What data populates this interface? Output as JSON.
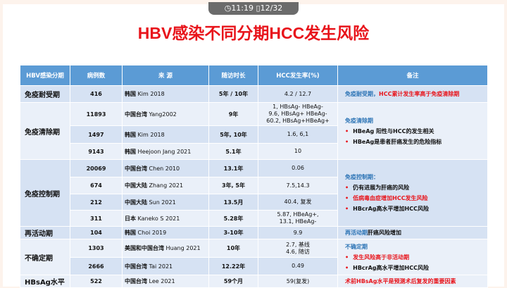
{
  "status": {
    "time": "11:19",
    "page": "12/32"
  },
  "title": "HBV感染不同分期HCC发生风险",
  "headers": [
    "HBV感染分期",
    "病例数",
    "来 源",
    "随访时长",
    "HCC发生率(%)",
    "备注"
  ],
  "rows": [
    {
      "stage": "免疫耐受期",
      "n": "416",
      "src_c": "韩国",
      "src_r": "Kim 2018",
      "fu": "5年 / 10年",
      "hcc": "4.2 / 12.7"
    },
    {
      "stage": "免疫清除期",
      "n": "11893",
      "src_c": "中国台湾",
      "src_r": "Yang2002",
      "fu": "9年",
      "hcc": "1, HBsAg- HBeAg-\n9.6, HBsAg+ HBeAg-\n60.2, HBsAg+HBeAg+"
    },
    {
      "n": "1497",
      "src_c": "韩国",
      "src_r": "Kim 2018",
      "fu": "5年, 10年",
      "hcc": "1.6, 6,1"
    },
    {
      "n": "9143",
      "src_c": "韩国",
      "src_r": "Heejoon Jang 2021",
      "fu": "5.1年",
      "hcc": "10"
    },
    {
      "stage": "免疫控制期",
      "n": "20069",
      "src_c": "中国台湾",
      "src_r": "Chen 2010",
      "fu": "13.1年",
      "hcc": "0.06"
    },
    {
      "n": "674",
      "src_c": "中国大陆",
      "src_r": "Zhang 2021",
      "fu": "3年, 5年",
      "hcc": "7.5,14.3"
    },
    {
      "n": "212",
      "src_c": "中国大陆",
      "src_r": "Sun 2021",
      "fu": "13.5月",
      "hcc": "40.4, 复发"
    },
    {
      "n": "311",
      "src_c": "日本",
      "src_r": "Kaneko S 2021",
      "fu": "5.28年",
      "hcc": "5.87, HBeAg+,\n13.1, HBeAg-"
    },
    {
      "stage": "再活动期",
      "n": "104",
      "src_c": "韩国",
      "src_r": "Choi 2019",
      "fu": "3-10年",
      "hcc": "9.9"
    },
    {
      "stage": "不确定期",
      "n": "1303",
      "src_c": "美国和中国台湾",
      "src_r": "Huang 2021",
      "fu": "10年",
      "hcc": "2.7, 基线\n4.6, 随访"
    },
    {
      "n": "2666",
      "src_c": "中国台湾",
      "src_r": "Tai 2021",
      "fu": "12.22年",
      "hcc": "0.49"
    },
    {
      "stage": "HBsAg水平",
      "n": "522",
      "src_c": "中国台湾",
      "src_r": "Lee 2021",
      "fu": "59个月",
      "hcc": "59(复发)"
    }
  ],
  "notes": {
    "tolerance": {
      "blue": "免疫耐受期，",
      "red": "HCC累计发生率高于免疫清除期"
    },
    "clearance": {
      "head": "免疫清除期",
      "items": [
        "HBeAg 阳性与HCC的发生相关",
        "HBeAg是患者肝癌发生的危险指标"
      ]
    },
    "control": {
      "head": "免疫控制期：",
      "items": [
        "仍有进展为肝癌的风险",
        "低病毒血症增加HCC发生风险",
        "HBcrAg高水平增加HCC风险"
      ]
    },
    "reactivation": {
      "blue": "再活动期",
      "black": "肝癌风险增加"
    },
    "indeterminate": {
      "head": "不确定期",
      "items": [
        "发生风险高于非活动期",
        "HBcrAg高水平增加HCC风险"
      ]
    },
    "hbsag": "术前HBsAg水平是预测术后复发的重要因素"
  },
  "colors": {
    "header": "#5b9bd5",
    "title": "#e8141b",
    "blue": "#2e75b6",
    "row_a": "#d6e2f3",
    "row_b": "#eaf0f9"
  }
}
